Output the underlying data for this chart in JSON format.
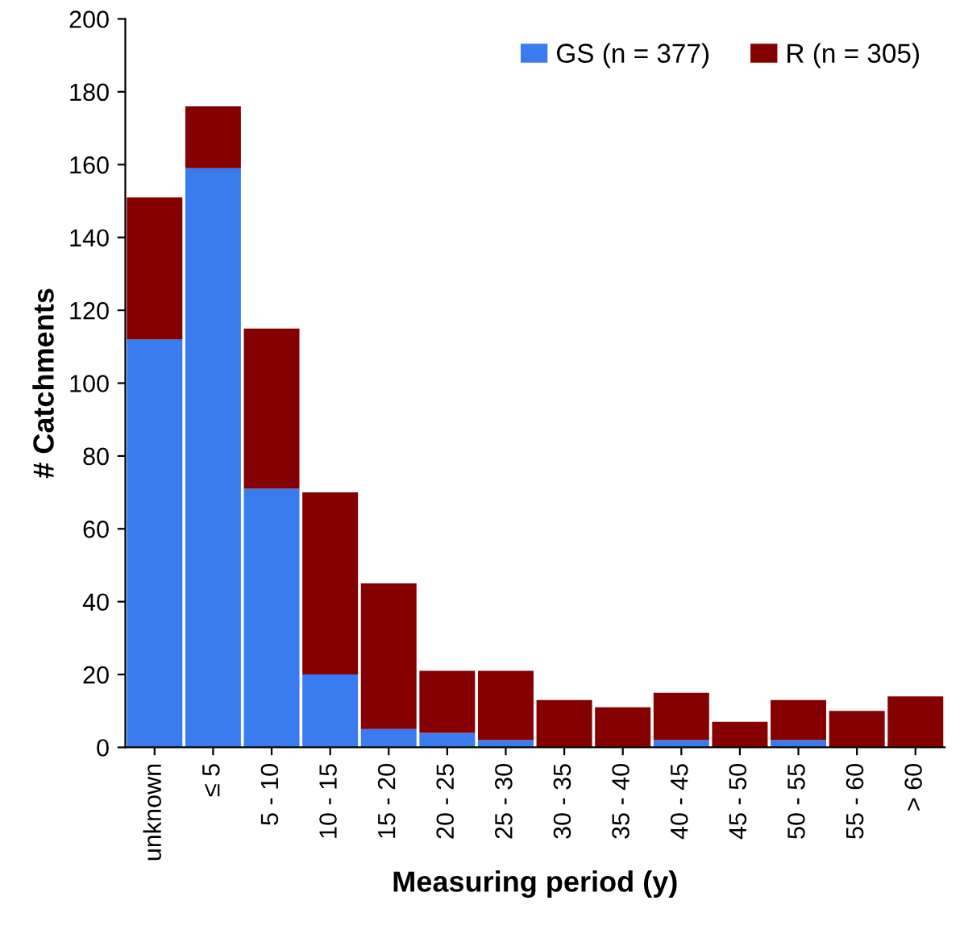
{
  "chart_data": {
    "type": "bar",
    "stacked": true,
    "xlabel": "Measuring period (y)",
    "ylabel": "# Catchments",
    "categories": [
      "unknown",
      "≤ 5",
      "5 - 10",
      "10 - 15",
      "15 - 20",
      "20 - 25",
      "25 - 30",
      "30 - 35",
      "35 - 40",
      "40 - 45",
      "45 - 50",
      "50 - 55",
      "55 - 60",
      "> 60"
    ],
    "series": [
      {
        "name": "GS (n = 377)",
        "color": "#3b7bf0",
        "values": [
          112,
          159,
          71,
          20,
          5,
          4,
          2,
          0,
          0,
          2,
          0,
          2,
          0,
          0
        ]
      },
      {
        "name": "R (n = 305)",
        "color": "#850000",
        "values": [
          39,
          17,
          44,
          50,
          40,
          17,
          19,
          13,
          11,
          13,
          7,
          11,
          10,
          14
        ]
      }
    ],
    "ylim": [
      0,
      200
    ],
    "yticks": [
      0,
      20,
      40,
      60,
      80,
      100,
      120,
      140,
      160,
      180,
      200
    ],
    "grid": false,
    "legend": "top right"
  }
}
